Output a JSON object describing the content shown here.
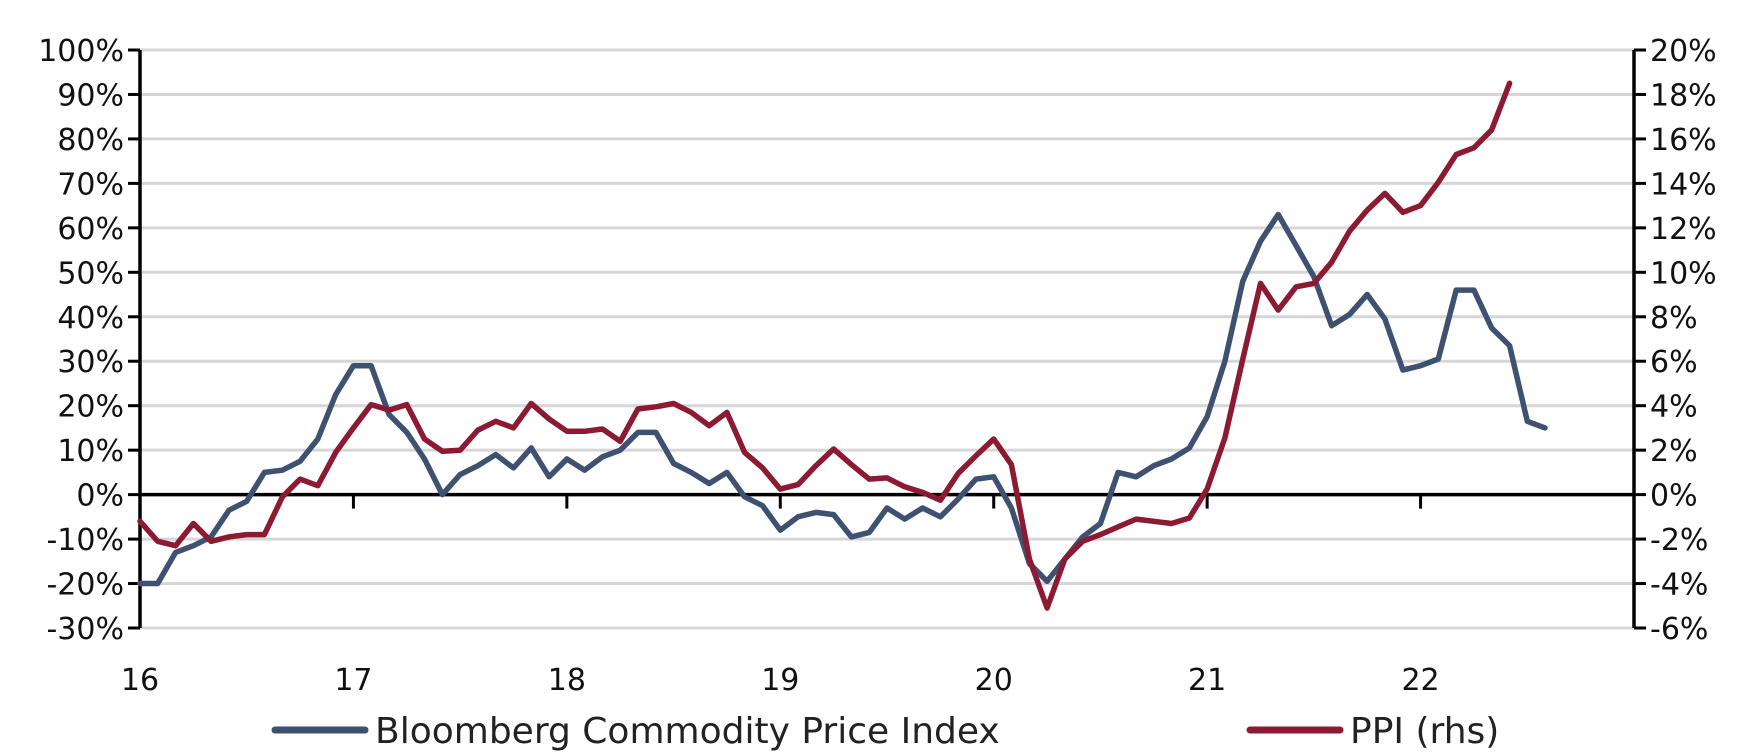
{
  "chart_data": {
    "type": "line",
    "title": "",
    "xlabel": "",
    "ylabel": "",
    "x_tick_labels": [
      "16",
      "17",
      "18",
      "19",
      "20",
      "21",
      "22"
    ],
    "x_range": [
      2016.0,
      2023.0
    ],
    "y_left": {
      "range": [
        -30,
        100
      ],
      "tick_values": [
        -30,
        -20,
        -10,
        0,
        10,
        20,
        30,
        40,
        50,
        60,
        70,
        80,
        90,
        100
      ],
      "tick_labels": [
        "-30%",
        "-20%",
        "-10%",
        "0%",
        "10%",
        "20%",
        "30%",
        "40%",
        "50%",
        "60%",
        "70%",
        "80%",
        "90%",
        "100%"
      ]
    },
    "y_right": {
      "range": [
        -6,
        20
      ],
      "tick_values": [
        -6,
        -4,
        -2,
        0,
        2,
        4,
        6,
        8,
        10,
        12,
        14,
        16,
        18,
        20
      ],
      "tick_labels": [
        "-6%",
        "-4%",
        "-2%",
        "0%",
        "2%",
        "4%",
        "6%",
        "8%",
        "10%",
        "12%",
        "14%",
        "16%",
        "18%",
        "20%"
      ]
    },
    "grid": "horizontal",
    "legend_position": "bottom",
    "series": [
      {
        "name": "Bloomberg Commodity Price Index",
        "axis": "left",
        "color": "#3e5170",
        "x": [
          2016.0,
          2016.083,
          2016.167,
          2016.25,
          2016.333,
          2016.417,
          2016.5,
          2016.583,
          2016.667,
          2016.75,
          2016.833,
          2016.917,
          2017.0,
          2017.083,
          2017.167,
          2017.25,
          2017.333,
          2017.417,
          2017.5,
          2017.583,
          2017.667,
          2017.75,
          2017.833,
          2017.917,
          2018.0,
          2018.083,
          2018.167,
          2018.25,
          2018.333,
          2018.417,
          2018.5,
          2018.583,
          2018.667,
          2018.75,
          2018.833,
          2018.917,
          2019.0,
          2019.083,
          2019.167,
          2019.25,
          2019.333,
          2019.417,
          2019.5,
          2019.583,
          2019.667,
          2019.75,
          2019.833,
          2019.917,
          2020.0,
          2020.083,
          2020.167,
          2020.25,
          2020.333,
          2020.417,
          2020.5,
          2020.583,
          2020.667,
          2020.75,
          2020.833,
          2020.917,
          2021.0,
          2021.083,
          2021.167,
          2021.25,
          2021.333,
          2021.417,
          2021.5,
          2021.583,
          2021.667,
          2021.75,
          2021.833,
          2021.917,
          2022.0,
          2022.083,
          2022.167,
          2022.25,
          2022.333,
          2022.417,
          2022.5,
          2022.583
        ],
        "values": [
          -20,
          -20,
          -13,
          -11.5,
          -9.5,
          -3.5,
          -1.5,
          5,
          5.5,
          7.5,
          12.5,
          22.5,
          29,
          29,
          18,
          14,
          8,
          0,
          4.5,
          6.5,
          9,
          6,
          10.5,
          4,
          8,
          5.5,
          8.5,
          10,
          14,
          14,
          7,
          5,
          2.5,
          5,
          -0.5,
          -2.5,
          -8,
          -5,
          -4,
          -4.5,
          -9.5,
          -8.5,
          -3,
          -5.5,
          -3,
          -5,
          -1,
          3.5,
          4,
          -3,
          -15.5,
          -19.5,
          -14.5,
          -9.5,
          -6.5,
          5,
          4,
          6.5,
          8,
          10.5,
          17.5,
          30,
          48,
          57,
          63,
          56,
          49,
          38,
          40.5,
          45,
          39.5,
          28,
          29,
          30.5,
          46,
          46,
          37.5,
          33.5,
          16.5,
          15
        ]
      },
      {
        "name": "PPI (rhs)",
        "axis": "right",
        "color": "#8c1a32",
        "x": [
          2016.0,
          2016.083,
          2016.167,
          2016.25,
          2016.333,
          2016.417,
          2016.5,
          2016.583,
          2016.667,
          2016.75,
          2016.833,
          2016.917,
          2017.0,
          2017.083,
          2017.167,
          2017.25,
          2017.333,
          2017.417,
          2017.5,
          2017.583,
          2017.667,
          2017.75,
          2017.833,
          2017.917,
          2018.0,
          2018.083,
          2018.167,
          2018.25,
          2018.333,
          2018.417,
          2018.5,
          2018.583,
          2018.667,
          2018.75,
          2018.833,
          2018.917,
          2019.0,
          2019.083,
          2019.167,
          2019.25,
          2019.333,
          2019.417,
          2019.5,
          2019.583,
          2019.667,
          2019.75,
          2019.833,
          2019.917,
          2020.0,
          2020.083,
          2020.167,
          2020.25,
          2020.333,
          2020.417,
          2020.5,
          2020.583,
          2020.667,
          2020.75,
          2020.833,
          2020.917,
          2021.0,
          2021.083,
          2021.167,
          2021.25,
          2021.333,
          2021.417,
          2021.5,
          2021.583,
          2021.667,
          2021.75,
          2021.833,
          2021.917,
          2022.0,
          2022.083,
          2022.167,
          2022.25,
          2022.333,
          2022.417
        ],
        "values": [
          -1.2,
          -2.1,
          -2.3,
          -1.3,
          -2.1,
          -1.9,
          -1.8,
          -1.8,
          -0.1,
          0.7,
          0.4,
          1.9,
          3,
          4.05,
          3.8,
          4.05,
          2.5,
          1.95,
          2,
          2.9,
          3.3,
          3,
          4.1,
          3.4,
          2.85,
          2.85,
          2.95,
          2.4,
          3.85,
          3.95,
          4.1,
          3.7,
          3.1,
          3.7,
          1.9,
          1.2,
          0.25,
          0.45,
          1.3,
          2.05,
          1.35,
          0.7,
          0.75,
          0.35,
          0.1,
          -0.25,
          0.95,
          1.75,
          2.5,
          1.35,
          -2.9,
          -5.1,
          -2.9,
          -2.1,
          -1.8,
          -1.45,
          -1.1,
          -1.2,
          -1.3,
          -1.05,
          0.25,
          2.55,
          6.1,
          9.5,
          8.3,
          9.35,
          9.5,
          10.45,
          11.85,
          12.8,
          13.55,
          12.7,
          13,
          14.05,
          15.3,
          15.6,
          16.4,
          18.5
        ]
      }
    ]
  }
}
